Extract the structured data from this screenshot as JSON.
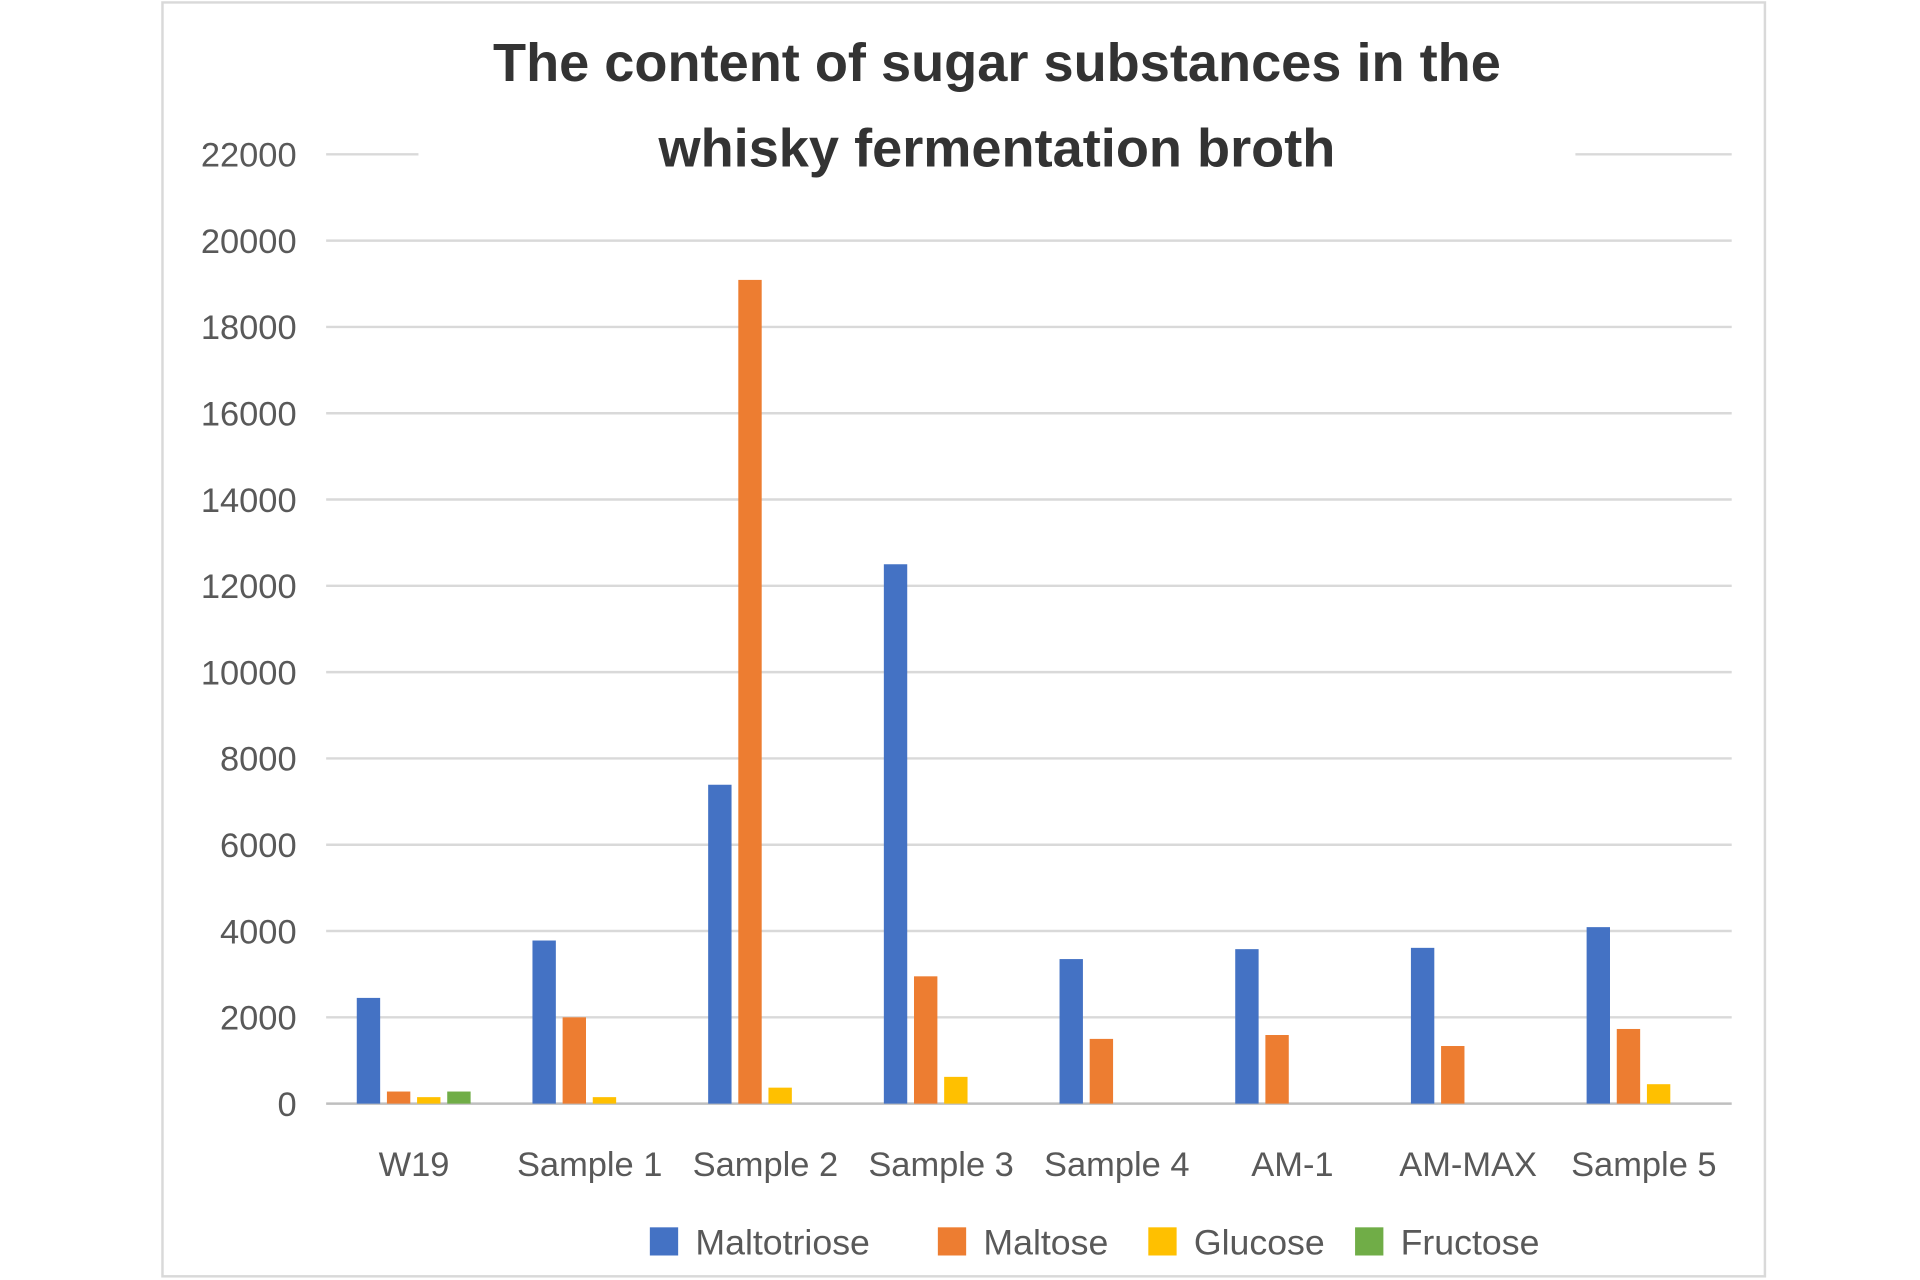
{
  "chart_data": {
    "type": "bar",
    "title_lines": [
      "The content of sugar substances in the",
      "whisky fermentation broth"
    ],
    "xlabel": "",
    "ylabel": "",
    "ylim": [
      0,
      22000
    ],
    "yticks": [
      "0",
      "2000",
      "4000",
      "6000",
      "8000",
      "10000",
      "12000",
      "14000",
      "16000",
      "18000",
      "20000",
      "22000"
    ],
    "grid": true,
    "legend_position": "bottom",
    "categories": [
      "W19",
      "Sample 1",
      "Sample 2",
      "Sample 3",
      "Sample 4",
      "AM-1",
      "AM-MAX",
      "Sample 5"
    ],
    "series": [
      {
        "name": "Maltotriose",
        "color": "#4472C4",
        "values": [
          2450,
          3780,
          7390,
          12500,
          3350,
          3580,
          3610,
          4090
        ]
      },
      {
        "name": "Maltose",
        "color": "#ED7D31",
        "values": [
          280,
          2000,
          19090,
          2950,
          1500,
          1590,
          1335,
          1730
        ]
      },
      {
        "name": "Glucose",
        "color": "#FFC000",
        "values": [
          150,
          150,
          370,
          620,
          0,
          0,
          0,
          450
        ]
      },
      {
        "name": "Fructose",
        "color": "#70AD47",
        "values": [
          280,
          0,
          0,
          0,
          0,
          0,
          0,
          0
        ]
      }
    ]
  }
}
